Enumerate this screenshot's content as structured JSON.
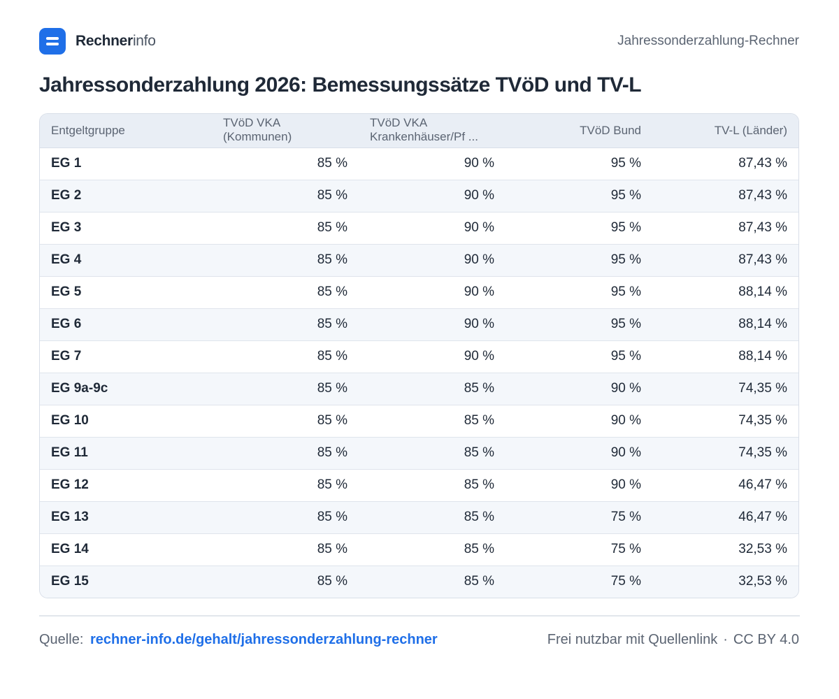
{
  "header": {
    "brand_strong": "Rechner",
    "brand_light": "info",
    "page_label": "Jahressonderzahlung-Rechner"
  },
  "title": "Jahressonderzahlung 2026: Bemessungssätze TVöD und TV-L",
  "table": {
    "columns": [
      {
        "line1": "Entgeltgruppe"
      },
      {
        "line1": "TVöD VKA",
        "line2": "(Kommunen)"
      },
      {
        "line1": "TVöD VKA",
        "line2": "Krankenhäuser/Pf ..."
      },
      {
        "line1": "TVöD Bund"
      },
      {
        "line1": "TV-L (Länder)"
      }
    ],
    "rows": [
      [
        "EG 1",
        "85 %",
        "90 %",
        "95 %",
        "87,43 %"
      ],
      [
        "EG 2",
        "85 %",
        "90 %",
        "95 %",
        "87,43 %"
      ],
      [
        "EG 3",
        "85 %",
        "90 %",
        "95 %",
        "87,43 %"
      ],
      [
        "EG 4",
        "85 %",
        "90 %",
        "95 %",
        "87,43 %"
      ],
      [
        "EG 5",
        "85 %",
        "90 %",
        "95 %",
        "88,14 %"
      ],
      [
        "EG 6",
        "85 %",
        "90 %",
        "95 %",
        "88,14 %"
      ],
      [
        "EG 7",
        "85 %",
        "90 %",
        "95 %",
        "88,14 %"
      ],
      [
        "EG 9a-9c",
        "85 %",
        "85 %",
        "90 %",
        "74,35 %"
      ],
      [
        "EG 10",
        "85 %",
        "85 %",
        "90 %",
        "74,35 %"
      ],
      [
        "EG 11",
        "85 %",
        "85 %",
        "90 %",
        "74,35 %"
      ],
      [
        "EG 12",
        "85 %",
        "85 %",
        "90 %",
        "46,47 %"
      ],
      [
        "EG 13",
        "85 %",
        "85 %",
        "75 %",
        "46,47 %"
      ],
      [
        "EG 14",
        "85 %",
        "85 %",
        "75 %",
        "32,53 %"
      ],
      [
        "EG 15",
        "85 %",
        "85 %",
        "75 %",
        "32,53 %"
      ]
    ]
  },
  "footer": {
    "source_label": "Quelle:",
    "source_link": "rechner-info.de/gehalt/jahressonderzahlung-rechner",
    "license_text": "Frei nutzbar mit Quellenlink",
    "separator": "·",
    "license_name": "CC BY 4.0"
  },
  "colors": {
    "accent": "#1f6fe8",
    "header_bg": "#e9eef5",
    "row_alt_bg": "#f4f7fb"
  }
}
